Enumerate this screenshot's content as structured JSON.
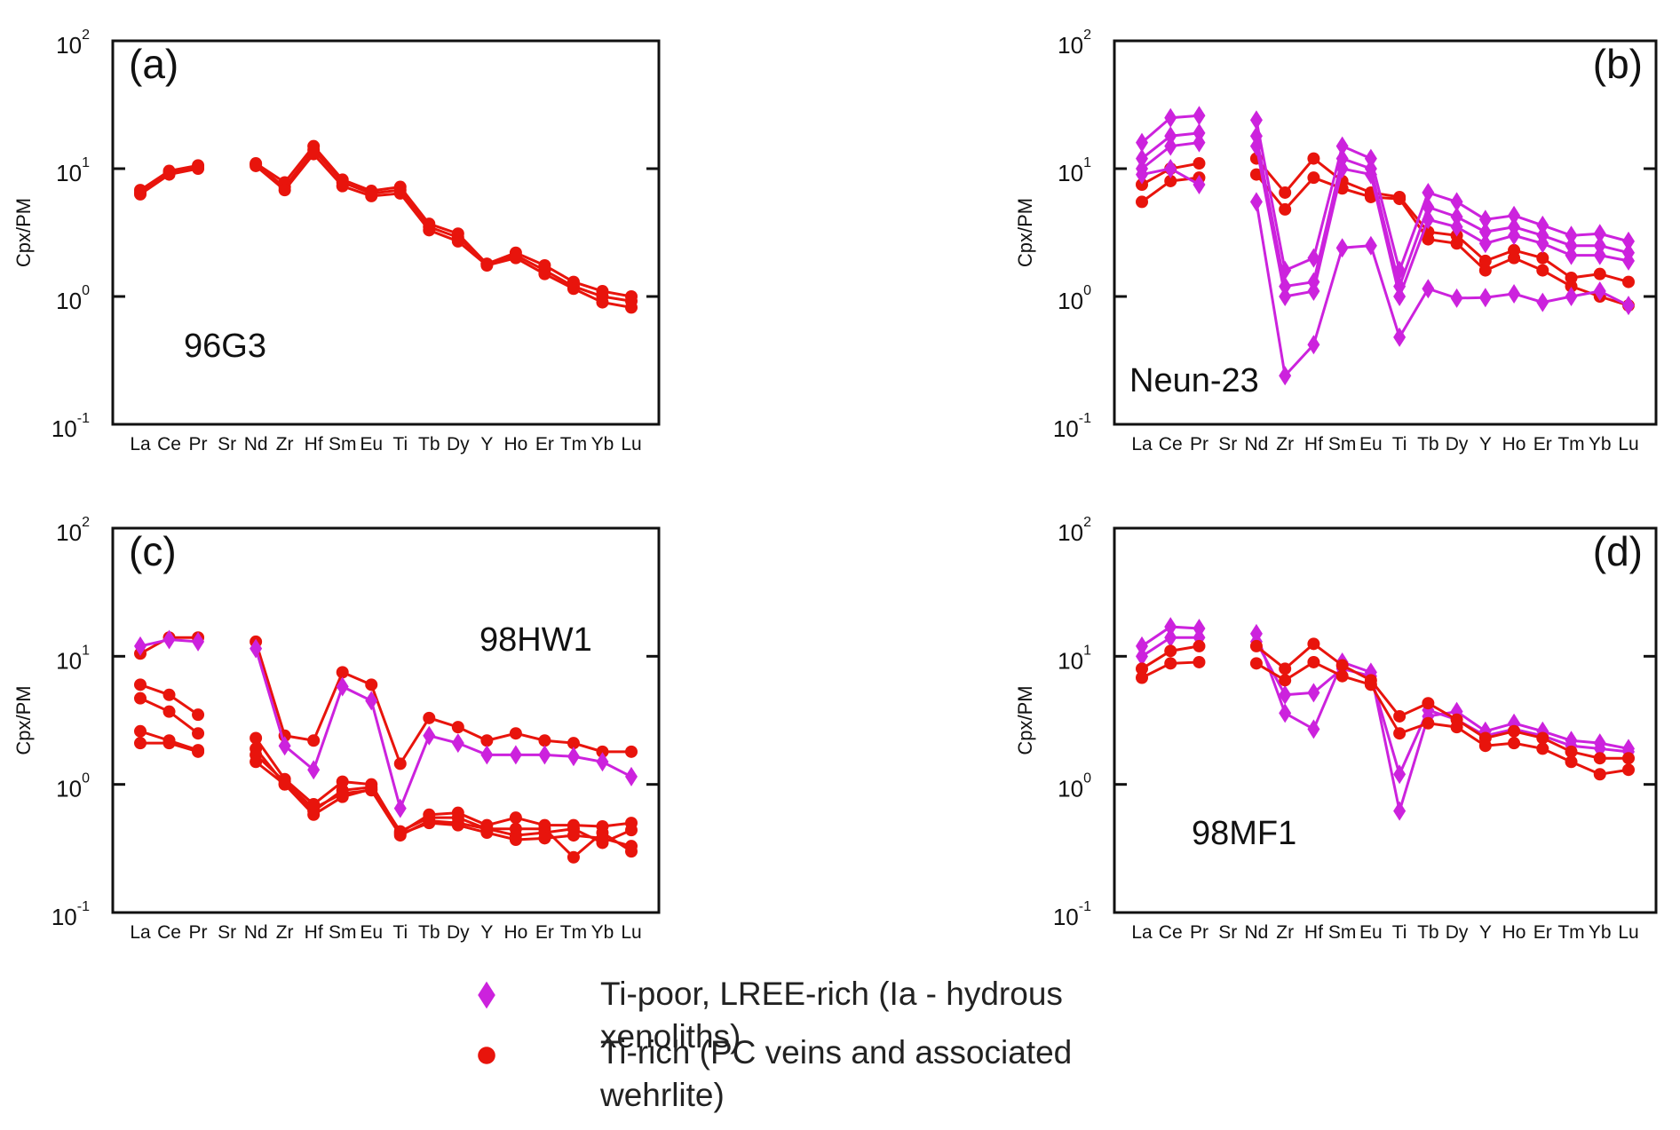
{
  "chart_data": [
    {
      "type": "line",
      "panel_label": "(a)",
      "annotation": "96G3",
      "y_label": "Cpx/PM",
      "log_scale": true,
      "categories": [
        "La",
        "Ce",
        "Pr",
        "Sr",
        "Nd",
        "Zr",
        "Hf",
        "Sm",
        "Eu",
        "Ti",
        "Tb",
        "Dy",
        "Y",
        "Ho",
        "Er",
        "Tm",
        "Yb",
        "Lu"
      ],
      "ylim": [
        0.1,
        100
      ],
      "yticks": [
        {
          "value": 0.1,
          "label": "10",
          "exponent": "-1"
        },
        {
          "value": 1,
          "label": "10",
          "exponent": "0"
        },
        {
          "value": 10,
          "label": "10",
          "exponent": "1"
        },
        {
          "value": 100,
          "label": "10",
          "exponent": "2"
        }
      ],
      "series": [
        {
          "color": "#e8140c",
          "marker": "circle",
          "values": [
            6.5,
            9.3,
            10.3,
            null,
            10.8,
            7.2,
            14,
            7.8,
            6.4,
            6.8,
            3.5,
            2.9,
            1.8,
            2.1,
            1.6,
            1.2,
            1.0,
            0.92
          ]
        },
        {
          "color": "#e8140c",
          "marker": "circle",
          "values": [
            6.8,
            9.6,
            10.6,
            null,
            11.0,
            7.8,
            15,
            8.2,
            6.7,
            7.2,
            3.7,
            3.1,
            1.8,
            2.2,
            1.75,
            1.3,
            1.1,
            1.0
          ]
        },
        {
          "color": "#e8140c",
          "marker": "circle",
          "values": [
            6.3,
            9.0,
            10.0,
            null,
            10.5,
            6.8,
            13,
            7.3,
            6.1,
            6.4,
            3.3,
            2.7,
            1.75,
            2.0,
            1.5,
            1.15,
            0.9,
            0.82
          ]
        }
      ]
    },
    {
      "type": "line",
      "panel_label": "(b)",
      "annotation": "Neun-23",
      "y_label": "Cpx/PM",
      "log_scale": true,
      "categories": [
        "La",
        "Ce",
        "Pr",
        "Sr",
        "Nd",
        "Zr",
        "Hf",
        "Sm",
        "Eu",
        "Ti",
        "Tb",
        "Dy",
        "Y",
        "Ho",
        "Er",
        "Tm",
        "Yb",
        "Lu"
      ],
      "ylim": [
        0.1,
        100
      ],
      "yticks": [
        {
          "value": 0.1,
          "label": "10",
          "exponent": "-1"
        },
        {
          "value": 1,
          "label": "10",
          "exponent": "0"
        },
        {
          "value": 10,
          "label": "10",
          "exponent": "1"
        },
        {
          "value": 100,
          "label": "10",
          "exponent": "2"
        }
      ],
      "series": [
        {
          "color": "#e8140c",
          "marker": "circle",
          "values": [
            7.5,
            10,
            11,
            null,
            12,
            6.5,
            12,
            8,
            6.5,
            6,
            3.2,
            3,
            1.9,
            2.3,
            2.0,
            1.4,
            1.5,
            1.3
          ]
        },
        {
          "color": "#e8140c",
          "marker": "circle",
          "values": [
            5.5,
            8,
            8.5,
            null,
            9,
            4.8,
            8.5,
            7,
            6,
            5.8,
            2.8,
            2.6,
            1.6,
            2.0,
            1.6,
            1.2,
            1.0,
            0.85
          ]
        },
        {
          "color": "#cc22dd",
          "marker": "diamond",
          "values": [
            16,
            25,
            26,
            null,
            24,
            1.6,
            2.0,
            15,
            12,
            1.6,
            6.5,
            5.5,
            4,
            4.3,
            3.6,
            3.0,
            3.1,
            2.7
          ]
        },
        {
          "color": "#cc22dd",
          "marker": "diamond",
          "values": [
            12,
            18,
            19,
            null,
            18,
            1.2,
            1.3,
            12,
            10,
            1.2,
            5,
            4.2,
            3.2,
            3.5,
            3,
            2.5,
            2.5,
            2.2
          ]
        },
        {
          "color": "#cc22dd",
          "marker": "diamond",
          "values": [
            10,
            15,
            16,
            null,
            15,
            1.0,
            1.1,
            10,
            9,
            1.0,
            4,
            3.5,
            2.6,
            3,
            2.6,
            2.1,
            2.1,
            1.9
          ]
        },
        {
          "color": "#cc22dd",
          "marker": "diamond",
          "values": [
            9,
            10,
            7.5,
            null,
            5.5,
            0.24,
            0.42,
            2.4,
            2.5,
            0.48,
            1.15,
            0.97,
            0.98,
            1.05,
            0.9,
            1.0,
            1.1,
            0.85
          ]
        }
      ]
    },
    {
      "type": "line",
      "panel_label": "(c)",
      "annotation": "98HW1",
      "y_label": "Cpx/PM",
      "log_scale": true,
      "categories": [
        "La",
        "Ce",
        "Pr",
        "Sr",
        "Nd",
        "Zr",
        "Hf",
        "Sm",
        "Eu",
        "Ti",
        "Tb",
        "Dy",
        "Y",
        "Ho",
        "Er",
        "Tm",
        "Yb",
        "Lu"
      ],
      "ylim": [
        0.1,
        100
      ],
      "yticks": [
        {
          "value": 0.1,
          "label": "10",
          "exponent": "-1"
        },
        {
          "value": 1,
          "label": "10",
          "exponent": "0"
        },
        {
          "value": 10,
          "label": "10",
          "exponent": "1"
        },
        {
          "value": 100,
          "label": "10",
          "exponent": "2"
        }
      ],
      "series": [
        {
          "color": "#e8140c",
          "marker": "circle",
          "values": [
            10.5,
            14,
            14,
            null,
            13,
            2.4,
            2.2,
            7.5,
            6,
            1.45,
            3.3,
            2.8,
            2.2,
            2.5,
            2.2,
            2.1,
            1.8,
            1.8
          ]
        },
        {
          "color": "#e8140c",
          "marker": "circle",
          "values": [
            6,
            5,
            3.5,
            null,
            2.3,
            1.1,
            0.7,
            1.05,
            1.0,
            0.42,
            0.58,
            0.6,
            0.48,
            0.55,
            0.48,
            0.48,
            0.47,
            0.5
          ]
        },
        {
          "color": "#e8140c",
          "marker": "circle",
          "values": [
            4.7,
            3.7,
            2.5,
            null,
            1.9,
            1.0,
            0.62,
            0.9,
            0.95,
            0.43,
            0.55,
            0.55,
            0.45,
            0.45,
            0.45,
            0.27,
            0.42,
            0.3
          ]
        },
        {
          "color": "#e8140c",
          "marker": "circle",
          "values": [
            2.6,
            2.2,
            1.85,
            null,
            1.7,
            1.05,
            0.65,
            0.85,
            0.9,
            0.4,
            0.52,
            0.5,
            0.45,
            0.4,
            0.42,
            0.45,
            0.35,
            0.44
          ]
        },
        {
          "color": "#e8140c",
          "marker": "circle",
          "values": [
            2.1,
            2.1,
            1.8,
            null,
            1.5,
            1.0,
            0.58,
            0.8,
            0.92,
            0.41,
            0.5,
            0.48,
            0.42,
            0.37,
            0.38,
            0.4,
            0.38,
            0.33
          ]
        },
        {
          "color": "#cc22dd",
          "marker": "diamond",
          "values": [
            12,
            13.5,
            13,
            null,
            11.5,
            2.0,
            1.3,
            5.8,
            4.5,
            0.65,
            2.4,
            2.1,
            1.7,
            1.7,
            1.7,
            1.65,
            1.5,
            1.15
          ]
        }
      ]
    },
    {
      "type": "line",
      "panel_label": "(d)",
      "annotation": "98MF1",
      "y_label": "Cpx/PM",
      "log_scale": true,
      "categories": [
        "La",
        "Ce",
        "Pr",
        "Sr",
        "Nd",
        "Zr",
        "Hf",
        "Sm",
        "Eu",
        "Ti",
        "Tb",
        "Dy",
        "Y",
        "Ho",
        "Er",
        "Tm",
        "Yb",
        "Lu"
      ],
      "ylim": [
        0.1,
        100
      ],
      "yticks": [
        {
          "value": 0.1,
          "label": "10",
          "exponent": "-1"
        },
        {
          "value": 1,
          "label": "10",
          "exponent": "0"
        },
        {
          "value": 10,
          "label": "10",
          "exponent": "1"
        },
        {
          "value": 100,
          "label": "10",
          "exponent": "2"
        }
      ],
      "series": [
        {
          "color": "#cc22dd",
          "marker": "diamond",
          "values": [
            12,
            17,
            16.5,
            null,
            15,
            3.6,
            2.7,
            9,
            7.5,
            0.62,
            3.4,
            3.7,
            2.6,
            3.0,
            2.6,
            2.2,
            2.1,
            1.9
          ]
        },
        {
          "color": "#cc22dd",
          "marker": "diamond",
          "values": [
            10,
            14,
            14,
            null,
            13,
            5.0,
            5.2,
            8,
            7,
            1.2,
            3.8,
            3.2,
            2.4,
            2.7,
            2.4,
            2.0,
            1.9,
            1.8
          ]
        },
        {
          "color": "#e8140c",
          "marker": "circle",
          "values": [
            8,
            11,
            12,
            null,
            12,
            8,
            12.5,
            8.5,
            6.5,
            3.4,
            4.3,
            3.2,
            2.3,
            2.6,
            2.3,
            1.8,
            1.6,
            1.6
          ]
        },
        {
          "color": "#e8140c",
          "marker": "circle",
          "values": [
            6.8,
            8.8,
            9,
            null,
            8.8,
            6.5,
            9,
            7,
            6,
            2.5,
            3,
            2.8,
            2.0,
            2.1,
            1.9,
            1.5,
            1.2,
            1.3
          ]
        }
      ]
    }
  ],
  "legend": {
    "items": [
      {
        "label": "Ti-poor, LREE-rich (Ia - hydrous xenoliths)",
        "marker": "diamond",
        "color": "#cc22dd"
      },
      {
        "label": "Ti-rich (PC veins and associated wehrlite)",
        "marker": "circle",
        "color": "#e8140c"
      }
    ]
  }
}
